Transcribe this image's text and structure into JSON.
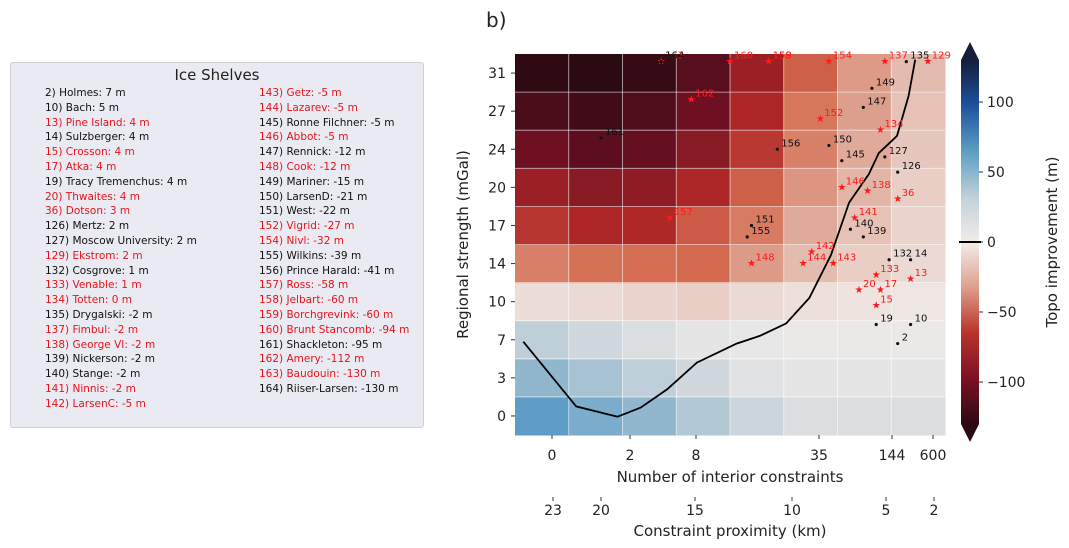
{
  "panel_label": "b)",
  "legend": {
    "title": "Ice Shelves",
    "items": [
      {
        "text": "2) Holmes: 7 m",
        "red": false
      },
      {
        "text": "10) Bach: 5 m",
        "red": false
      },
      {
        "text": "13) Pine Island: 4 m",
        "red": true
      },
      {
        "text": "14) Sulzberger: 4 m",
        "red": false
      },
      {
        "text": "15) Crosson: 4 m",
        "red": true
      },
      {
        "text": "17) Atka: 4 m",
        "red": true
      },
      {
        "text": "19) Tracy Tremenchus: 4 m",
        "red": false
      },
      {
        "text": "20) Thwaites: 4 m",
        "red": true
      },
      {
        "text": "36) Dotson: 3 m",
        "red": true
      },
      {
        "text": "126) Mertz: 2 m",
        "red": false
      },
      {
        "text": "127) Moscow University: 2 m",
        "red": false
      },
      {
        "text": "129) Ekstrom: 2 m",
        "red": true
      },
      {
        "text": "132) Cosgrove: 1 m",
        "red": false
      },
      {
        "text": "133) Venable: 1 m",
        "red": true
      },
      {
        "text": "134) Totten: 0 m",
        "red": true
      },
      {
        "text": "135) Drygalski: -2 m",
        "red": false
      },
      {
        "text": "137) Fimbul: -2 m",
        "red": true
      },
      {
        "text": "138) George VI: -2 m",
        "red": true
      },
      {
        "text": "139) Nickerson: -2 m",
        "red": false
      },
      {
        "text": "140) Stange: -2 m",
        "red": false
      },
      {
        "text": "141) Ninnis: -2 m",
        "red": true
      },
      {
        "text": "142) LarsenC: -5 m",
        "red": true
      },
      {
        "text": "143) Getz: -5 m",
        "red": true
      },
      {
        "text": "144) Lazarev: -5 m",
        "red": true
      },
      {
        "text": "145) Ronne Filchner: -5 m",
        "red": false
      },
      {
        "text": "146) Abbot: -5 m",
        "red": true
      },
      {
        "text": "147) Rennick: -12 m",
        "red": false
      },
      {
        "text": "148) Cook: -12 m",
        "red": true
      },
      {
        "text": "149) Mariner: -15 m",
        "red": false
      },
      {
        "text": "150) LarsenD: -21 m",
        "red": false
      },
      {
        "text": "151) West: -22 m",
        "red": false
      },
      {
        "text": "152) Vigrid: -27 m",
        "red": true
      },
      {
        "text": "154) Nivl: -32 m",
        "red": true
      },
      {
        "text": "155) Wilkins: -39 m",
        "red": false
      },
      {
        "text": "156) Prince Harald: -41 m",
        "red": false
      },
      {
        "text": "157) Ross: -58 m",
        "red": true
      },
      {
        "text": "158) Jelbart: -60 m",
        "red": true
      },
      {
        "text": "159) Borchgrevink: -60 m",
        "red": true
      },
      {
        "text": "160) Brunt Stancomb: -94 m",
        "red": true
      },
      {
        "text": "161) Shackleton: -95 m",
        "red": false
      },
      {
        "text": "162) Amery: -112 m",
        "red": true
      },
      {
        "text": "163) Baudouin: -130 m",
        "red": true
      },
      {
        "text": "164) Riiser-Larsen: -130 m",
        "red": false
      }
    ]
  },
  "chart_data": {
    "type": "heatmap",
    "xlabel": "Number of interior constraints",
    "xlabel2": "Constraint proximity (km)",
    "ylabel": "Regional strength (mGal)",
    "colorbar_label": "Topo improvement (m)",
    "x_tick_labels": [
      "0",
      "2",
      "8",
      "35",
      "144",
      "600"
    ],
    "x2_tick_labels": [
      "23",
      "20",
      "15",
      "10",
      "5",
      "2"
    ],
    "y_tick_labels": [
      "0",
      "3",
      "7",
      "10",
      "14",
      "17",
      "20",
      "24",
      "27",
      "31"
    ],
    "colorbar_ticks": [
      "100",
      "50",
      "0",
      "−50",
      "−100"
    ],
    "colorbar_ticks_values": [
      100,
      50,
      0,
      -50,
      -100
    ],
    "colorbar_range": [
      -130,
      130
    ],
    "grid_values": [
      [
        46,
        38,
        32,
        22,
        14,
        8,
        8,
        8
      ],
      [
        32,
        26,
        18,
        12,
        6,
        4,
        4,
        4
      ],
      [
        18,
        12,
        8,
        4,
        3,
        2,
        2,
        2
      ],
      [
        -5,
        -6,
        -8,
        -10,
        -6,
        -4,
        -3,
        -2
      ],
      [
        -38,
        -44,
        -45,
        -46,
        -28,
        -16,
        -10,
        -6
      ],
      [
        -65,
        -72,
        -70,
        -52,
        -40,
        -22,
        -14,
        -8
      ],
      [
        -80,
        -88,
        -85,
        -72,
        -50,
        -30,
        -18,
        -10
      ],
      [
        -100,
        -108,
        -104,
        -88,
        -64,
        -38,
        -22,
        -12
      ],
      [
        -116,
        -120,
        -114,
        -100,
        -72,
        -42,
        -26,
        -14
      ],
      [
        -128,
        -130,
        -125,
        -110,
        -80,
        -50,
        -28,
        -16
      ]
    ],
    "contour_zero": [
      [
        0.25,
        2.45
      ],
      [
        1.85,
        0.75
      ],
      [
        3.1,
        0.48
      ],
      [
        3.8,
        0.72
      ],
      [
        4.6,
        1.2
      ],
      [
        5.5,
        1.9
      ],
      [
        6.7,
        2.4
      ],
      [
        7.4,
        2.6
      ],
      [
        8.2,
        2.93
      ],
      [
        8.9,
        3.6
      ],
      [
        9.55,
        4.72
      ],
      [
        10.1,
        6.1
      ],
      [
        10.7,
        6.85
      ],
      [
        11.0,
        7.4
      ],
      [
        11.55,
        7.85
      ],
      [
        11.9,
        8.9
      ],
      [
        12.1,
        9.85
      ]
    ],
    "contour_x_domain": [
      0,
      13
    ],
    "contour_y_domain": [
      0,
      10
    ],
    "shelves": [
      {
        "id": "2",
        "red": false,
        "x": 0.89,
        "y": 0.24
      },
      {
        "id": "10",
        "red": false,
        "x": 0.92,
        "y": 0.29
      },
      {
        "id": "13",
        "red": true,
        "x": 0.92,
        "y": 0.41
      },
      {
        "id": "14",
        "red": false,
        "x": 0.92,
        "y": 0.46
      },
      {
        "id": "15",
        "red": true,
        "x": 0.84,
        "y": 0.34
      },
      {
        "id": "17",
        "red": true,
        "x": 0.85,
        "y": 0.38
      },
      {
        "id": "19",
        "red": false,
        "x": 0.84,
        "y": 0.29
      },
      {
        "id": "20",
        "red": true,
        "x": 0.8,
        "y": 0.38
      },
      {
        "id": "36",
        "red": true,
        "x": 0.89,
        "y": 0.62
      },
      {
        "id": "126",
        "red": false,
        "x": 0.89,
        "y": 0.69
      },
      {
        "id": "127",
        "red": false,
        "x": 0.86,
        "y": 0.73
      },
      {
        "id": "129",
        "red": true,
        "x": 0.96,
        "y": 0.98
      },
      {
        "id": "132",
        "red": false,
        "x": 0.87,
        "y": 0.46
      },
      {
        "id": "133",
        "red": true,
        "x": 0.84,
        "y": 0.42
      },
      {
        "id": "134",
        "red": true,
        "x": 0.85,
        "y": 0.8
      },
      {
        "id": "135",
        "red": false,
        "x": 0.91,
        "y": 0.98
      },
      {
        "id": "137",
        "red": true,
        "x": 0.86,
        "y": 0.98
      },
      {
        "id": "138",
        "red": true,
        "x": 0.82,
        "y": 0.64
      },
      {
        "id": "139",
        "red": false,
        "x": 0.81,
        "y": 0.52
      },
      {
        "id": "140",
        "red": false,
        "x": 0.78,
        "y": 0.54
      },
      {
        "id": "141",
        "red": true,
        "x": 0.79,
        "y": 0.57
      },
      {
        "id": "142",
        "red": true,
        "x": 0.69,
        "y": 0.48
      },
      {
        "id": "143",
        "red": true,
        "x": 0.74,
        "y": 0.45
      },
      {
        "id": "144",
        "red": true,
        "x": 0.67,
        "y": 0.45
      },
      {
        "id": "145",
        "red": false,
        "x": 0.76,
        "y": 0.72
      },
      {
        "id": "146",
        "red": true,
        "x": 0.76,
        "y": 0.65
      },
      {
        "id": "147",
        "red": false,
        "x": 0.81,
        "y": 0.86
      },
      {
        "id": "148",
        "red": true,
        "x": 0.55,
        "y": 0.45
      },
      {
        "id": "149",
        "red": false,
        "x": 0.83,
        "y": 0.91
      },
      {
        "id": "150",
        "red": false,
        "x": 0.73,
        "y": 0.76
      },
      {
        "id": "151",
        "red": false,
        "x": 0.55,
        "y": 0.55
      },
      {
        "id": "152",
        "red": true,
        "x": 0.71,
        "y": 0.83
      },
      {
        "id": "154",
        "red": true,
        "x": 0.73,
        "y": 0.98
      },
      {
        "id": "155",
        "red": false,
        "x": 0.54,
        "y": 0.52
      },
      {
        "id": "156",
        "red": false,
        "x": 0.61,
        "y": 0.75
      },
      {
        "id": "157",
        "red": true,
        "x": 0.36,
        "y": 0.57
      },
      {
        "id": "158",
        "red": true,
        "x": 0.59,
        "y": 0.98
      },
      {
        "id": "159",
        "red": true,
        "x": 0.59,
        "y": 0.98
      },
      {
        "id": "160",
        "red": true,
        "x": 0.5,
        "y": 0.98
      },
      {
        "id": "161",
        "red": false,
        "x": 0.2,
        "y": 0.78
      },
      {
        "id": "162",
        "red": true,
        "x": 0.41,
        "y": 0.88
      },
      {
        "id": "163",
        "red": true,
        "x": 0.34,
        "y": 0.98
      },
      {
        "id": "164",
        "red": false,
        "x": 0.34,
        "y": 0.98
      }
    ]
  }
}
